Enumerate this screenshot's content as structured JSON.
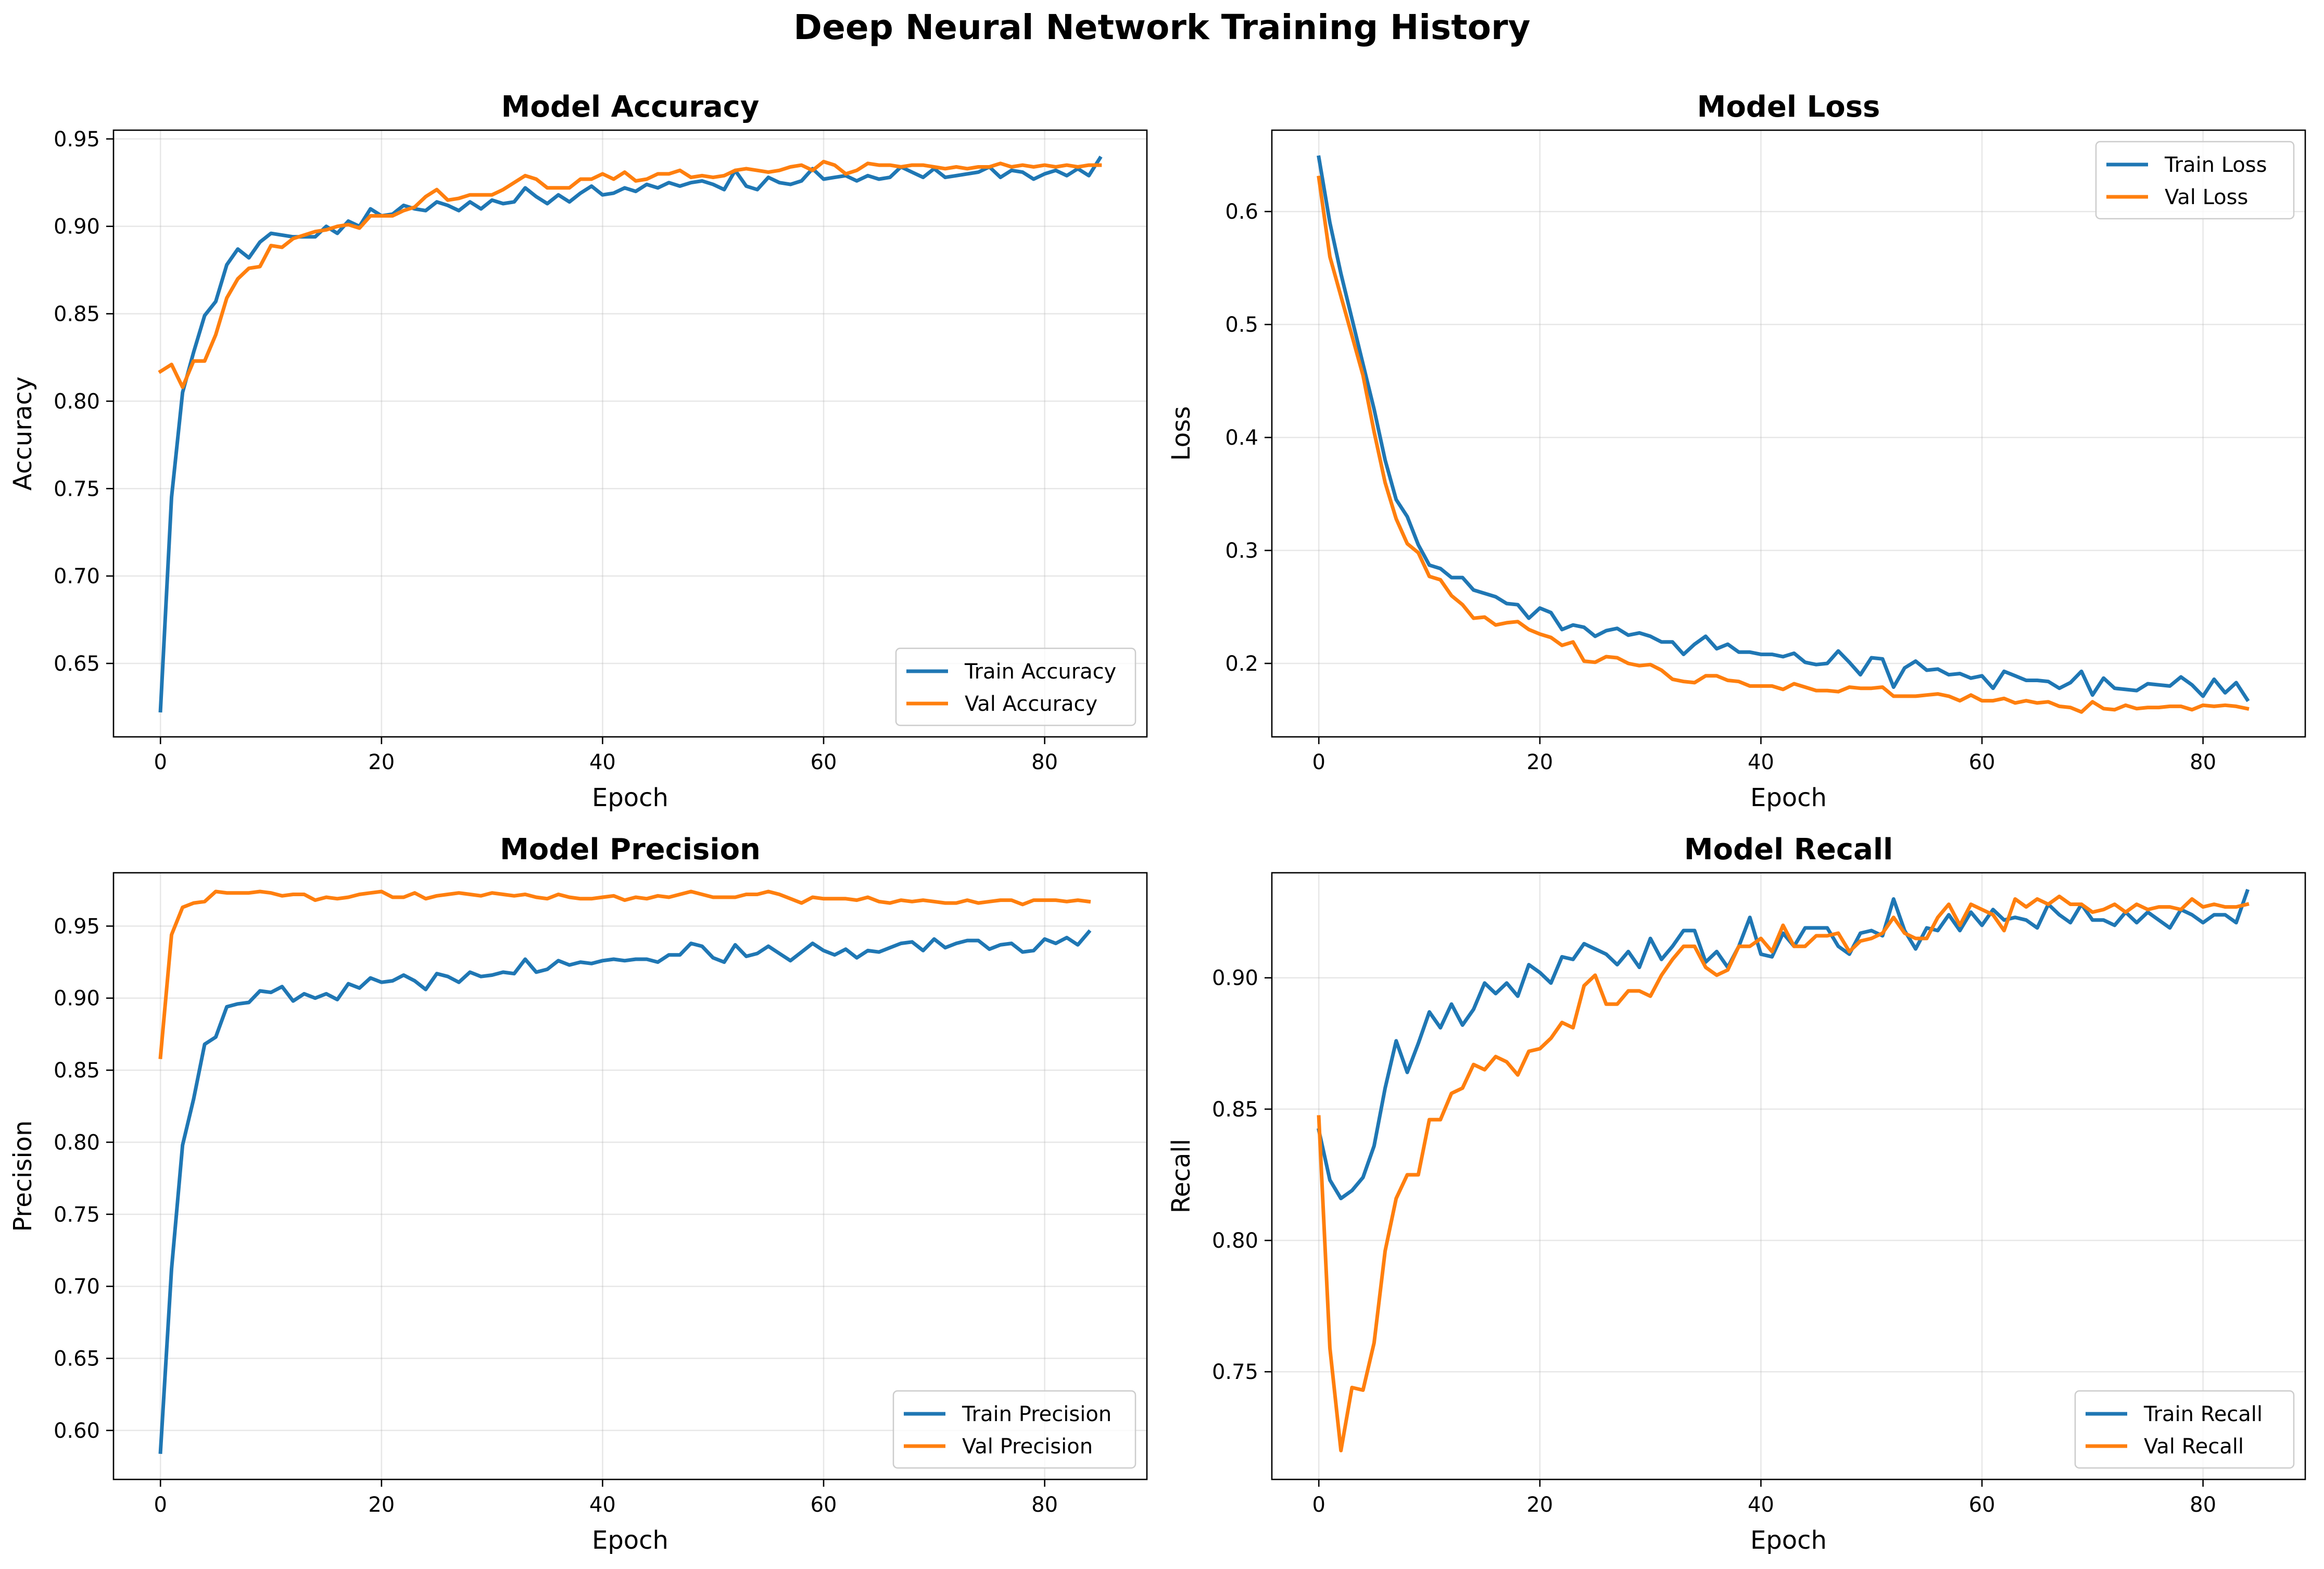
{
  "figure": {
    "title": "Deep Neural Network Training History"
  },
  "colors": {
    "train": "#1f77b4",
    "val": "#ff7f0e"
  },
  "chart_data": [
    {
      "type": "line",
      "title": "Model Accuracy",
      "xlabel": "Epoch",
      "ylabel": "Accuracy",
      "xlim": [
        -4.25,
        89.25
      ],
      "ylim": [
        0.608,
        0.955
      ],
      "xticks": [
        0,
        20,
        40,
        60,
        80
      ],
      "yticks": [
        0.65,
        0.7,
        0.75,
        0.8,
        0.85,
        0.9,
        0.95
      ],
      "grid": true,
      "legend": "lower right",
      "series": [
        {
          "name": "Train Accuracy",
          "color": "#1f77b4",
          "values": [
            0.623,
            0.745,
            0.805,
            0.828,
            0.849,
            0.857,
            0.878,
            0.887,
            0.882,
            0.891,
            0.896,
            0.895,
            0.894,
            0.894,
            0.894,
            0.9,
            0.896,
            0.903,
            0.9,
            0.91,
            0.906,
            0.907,
            0.912,
            0.91,
            0.909,
            0.914,
            0.912,
            0.909,
            0.914,
            0.91,
            0.915,
            0.913,
            0.914,
            0.922,
            0.917,
            0.913,
            0.918,
            0.914,
            0.919,
            0.923,
            0.918,
            0.919,
            0.922,
            0.92,
            0.924,
            0.922,
            0.925,
            0.923,
            0.925,
            0.926,
            0.924,
            0.921,
            0.932,
            0.923,
            0.921,
            0.928,
            0.925,
            0.924,
            0.926,
            0.933,
            0.927,
            0.928,
            0.929,
            0.926,
            0.929,
            0.927,
            0.928,
            0.934,
            0.931,
            0.928,
            0.933,
            0.928,
            0.929,
            0.93,
            0.931,
            0.934,
            0.928,
            0.932,
            0.931,
            0.927,
            0.93,
            0.932,
            0.929,
            0.933,
            0.929,
            0.939
          ]
        },
        {
          "name": "Val Accuracy",
          "color": "#ff7f0e",
          "values": [
            0.817,
            0.821,
            0.808,
            0.823,
            0.823,
            0.838,
            0.859,
            0.87,
            0.876,
            0.877,
            0.889,
            0.888,
            0.893,
            0.895,
            0.897,
            0.898,
            0.9,
            0.901,
            0.899,
            0.906,
            0.906,
            0.906,
            0.909,
            0.911,
            0.917,
            0.921,
            0.915,
            0.916,
            0.918,
            0.918,
            0.918,
            0.921,
            0.925,
            0.929,
            0.927,
            0.922,
            0.922,
            0.922,
            0.927,
            0.927,
            0.93,
            0.927,
            0.931,
            0.926,
            0.927,
            0.93,
            0.93,
            0.932,
            0.928,
            0.929,
            0.928,
            0.929,
            0.932,
            0.933,
            0.932,
            0.931,
            0.932,
            0.934,
            0.935,
            0.932,
            0.937,
            0.935,
            0.93,
            0.932,
            0.936,
            0.935,
            0.935,
            0.934,
            0.935,
            0.935,
            0.934,
            0.933,
            0.934,
            0.933,
            0.934,
            0.934,
            0.936,
            0.934,
            0.935,
            0.934,
            0.935,
            0.934,
            0.935,
            0.934,
            0.935,
            0.935
          ]
        }
      ]
    },
    {
      "type": "line",
      "title": "Model Loss",
      "xlabel": "Epoch",
      "ylabel": "Loss",
      "xlim": [
        -4.25,
        89.25
      ],
      "ylim": [
        0.135,
        0.672
      ],
      "xticks": [
        0,
        20,
        40,
        60,
        80
      ],
      "yticks": [
        0.2,
        0.3,
        0.4,
        0.5,
        0.6
      ],
      "grid": true,
      "legend": "upper right",
      "series": [
        {
          "name": "Train Loss",
          "color": "#1f77b4",
          "values": [
            0.648,
            0.59,
            0.545,
            0.505,
            0.465,
            0.425,
            0.38,
            0.345,
            0.33,
            0.305,
            0.287,
            0.284,
            0.276,
            0.276,
            0.265,
            0.262,
            0.259,
            0.253,
            0.252,
            0.24,
            0.249,
            0.245,
            0.23,
            0.234,
            0.232,
            0.224,
            0.229,
            0.231,
            0.225,
            0.227,
            0.224,
            0.219,
            0.219,
            0.208,
            0.217,
            0.224,
            0.213,
            0.217,
            0.21,
            0.21,
            0.208,
            0.208,
            0.206,
            0.209,
            0.201,
            0.199,
            0.2,
            0.211,
            0.201,
            0.19,
            0.205,
            0.204,
            0.179,
            0.196,
            0.202,
            0.194,
            0.195,
            0.19,
            0.191,
            0.187,
            0.189,
            0.178,
            0.193,
            0.189,
            0.185,
            0.185,
            0.184,
            0.178,
            0.183,
            0.193,
            0.172,
            0.187,
            0.178,
            0.177,
            0.176,
            0.182,
            0.181,
            0.18,
            0.188,
            0.181,
            0.171,
            0.186,
            0.174,
            0.183,
            0.168
          ]
        },
        {
          "name": "Val Loss",
          "color": "#ff7f0e",
          "values": [
            0.63,
            0.56,
            0.525,
            0.49,
            0.455,
            0.405,
            0.36,
            0.328,
            0.306,
            0.298,
            0.277,
            0.274,
            0.26,
            0.252,
            0.24,
            0.241,
            0.234,
            0.236,
            0.237,
            0.23,
            0.226,
            0.223,
            0.216,
            0.219,
            0.202,
            0.201,
            0.206,
            0.205,
            0.2,
            0.198,
            0.199,
            0.194,
            0.186,
            0.184,
            0.183,
            0.189,
            0.189,
            0.185,
            0.184,
            0.18,
            0.18,
            0.18,
            0.177,
            0.182,
            0.179,
            0.176,
            0.176,
            0.175,
            0.179,
            0.178,
            0.178,
            0.179,
            0.171,
            0.171,
            0.171,
            0.172,
            0.173,
            0.171,
            0.167,
            0.172,
            0.167,
            0.167,
            0.169,
            0.165,
            0.167,
            0.165,
            0.166,
            0.162,
            0.161,
            0.157,
            0.166,
            0.16,
            0.159,
            0.163,
            0.16,
            0.161,
            0.161,
            0.162,
            0.162,
            0.159,
            0.163,
            0.162,
            0.163,
            0.162,
            0.16
          ]
        }
      ]
    },
    {
      "type": "line",
      "title": "Model Precision",
      "xlabel": "Epoch",
      "ylabel": "Precision",
      "xlim": [
        -4.25,
        89.25
      ],
      "ylim": [
        0.566,
        0.987
      ],
      "xticks": [
        0,
        20,
        40,
        60,
        80
      ],
      "yticks": [
        0.6,
        0.65,
        0.7,
        0.75,
        0.8,
        0.85,
        0.9,
        0.95
      ],
      "grid": true,
      "legend": "lower right",
      "series": [
        {
          "name": "Train Precision",
          "color": "#1f77b4",
          "values": [
            0.585,
            0.712,
            0.798,
            0.83,
            0.868,
            0.873,
            0.894,
            0.896,
            0.897,
            0.905,
            0.904,
            0.908,
            0.898,
            0.903,
            0.9,
            0.903,
            0.899,
            0.91,
            0.907,
            0.914,
            0.911,
            0.912,
            0.916,
            0.912,
            0.906,
            0.917,
            0.915,
            0.911,
            0.918,
            0.915,
            0.916,
            0.918,
            0.917,
            0.927,
            0.918,
            0.92,
            0.926,
            0.923,
            0.925,
            0.924,
            0.926,
            0.927,
            0.926,
            0.927,
            0.927,
            0.925,
            0.93,
            0.93,
            0.938,
            0.936,
            0.928,
            0.925,
            0.937,
            0.929,
            0.931,
            0.936,
            0.931,
            0.926,
            0.932,
            0.938,
            0.933,
            0.93,
            0.934,
            0.928,
            0.933,
            0.932,
            0.935,
            0.938,
            0.939,
            0.933,
            0.941,
            0.935,
            0.938,
            0.94,
            0.94,
            0.934,
            0.937,
            0.938,
            0.932,
            0.933,
            0.941,
            0.938,
            0.942,
            0.937,
            0.946
          ]
        },
        {
          "name": "Val Precision",
          "color": "#ff7f0e",
          "values": [
            0.859,
            0.944,
            0.963,
            0.966,
            0.967,
            0.974,
            0.973,
            0.973,
            0.973,
            0.974,
            0.973,
            0.971,
            0.972,
            0.972,
            0.968,
            0.97,
            0.969,
            0.97,
            0.972,
            0.973,
            0.974,
            0.97,
            0.97,
            0.973,
            0.969,
            0.971,
            0.972,
            0.973,
            0.972,
            0.971,
            0.973,
            0.972,
            0.971,
            0.972,
            0.97,
            0.969,
            0.972,
            0.97,
            0.969,
            0.969,
            0.97,
            0.971,
            0.968,
            0.97,
            0.969,
            0.971,
            0.97,
            0.972,
            0.974,
            0.972,
            0.97,
            0.97,
            0.97,
            0.972,
            0.972,
            0.974,
            0.972,
            0.969,
            0.966,
            0.97,
            0.969,
            0.969,
            0.969,
            0.968,
            0.97,
            0.967,
            0.966,
            0.968,
            0.967,
            0.968,
            0.967,
            0.966,
            0.966,
            0.968,
            0.966,
            0.967,
            0.968,
            0.968,
            0.965,
            0.968,
            0.968,
            0.968,
            0.967,
            0.968,
            0.967
          ]
        }
      ]
    },
    {
      "type": "line",
      "title": "Model Recall",
      "xlabel": "Epoch",
      "ylabel": "Recall",
      "xlim": [
        -4.25,
        89.25
      ],
      "ylim": [
        0.709,
        0.94
      ],
      "xticks": [
        0,
        20,
        40,
        60,
        80
      ],
      "yticks": [
        0.75,
        0.8,
        0.85,
        0.9
      ],
      "grid": true,
      "legend": "lower right",
      "series": [
        {
          "name": "Train Recall",
          "color": "#1f77b4",
          "values": [
            0.842,
            0.823,
            0.816,
            0.819,
            0.824,
            0.836,
            0.858,
            0.876,
            0.864,
            0.875,
            0.887,
            0.881,
            0.89,
            0.882,
            0.888,
            0.898,
            0.894,
            0.898,
            0.893,
            0.905,
            0.902,
            0.898,
            0.908,
            0.907,
            0.913,
            0.911,
            0.909,
            0.905,
            0.91,
            0.904,
            0.915,
            0.907,
            0.912,
            0.918,
            0.918,
            0.906,
            0.91,
            0.904,
            0.912,
            0.923,
            0.909,
            0.908,
            0.917,
            0.912,
            0.919,
            0.919,
            0.919,
            0.912,
            0.909,
            0.917,
            0.918,
            0.916,
            0.93,
            0.918,
            0.911,
            0.919,
            0.918,
            0.924,
            0.918,
            0.925,
            0.92,
            0.926,
            0.922,
            0.923,
            0.922,
            0.919,
            0.928,
            0.924,
            0.921,
            0.928,
            0.922,
            0.922,
            0.92,
            0.925,
            0.921,
            0.925,
            0.922,
            0.919,
            0.926,
            0.924,
            0.921,
            0.924,
            0.924,
            0.921,
            0.933
          ]
        },
        {
          "name": "Val Recall",
          "color": "#ff7f0e",
          "values": [
            0.847,
            0.759,
            0.72,
            0.744,
            0.743,
            0.761,
            0.796,
            0.816,
            0.825,
            0.825,
            0.846,
            0.846,
            0.856,
            0.858,
            0.867,
            0.865,
            0.87,
            0.868,
            0.863,
            0.872,
            0.873,
            0.877,
            0.883,
            0.881,
            0.897,
            0.901,
            0.89,
            0.89,
            0.895,
            0.895,
            0.893,
            0.901,
            0.907,
            0.912,
            0.912,
            0.904,
            0.901,
            0.903,
            0.912,
            0.912,
            0.915,
            0.91,
            0.92,
            0.912,
            0.912,
            0.916,
            0.916,
            0.917,
            0.91,
            0.914,
            0.915,
            0.917,
            0.923,
            0.917,
            0.915,
            0.915,
            0.923,
            0.928,
            0.92,
            0.928,
            0.926,
            0.924,
            0.918,
            0.93,
            0.927,
            0.93,
            0.928,
            0.931,
            0.928,
            0.928,
            0.925,
            0.926,
            0.928,
            0.925,
            0.928,
            0.926,
            0.927,
            0.927,
            0.926,
            0.93,
            0.927,
            0.928,
            0.927,
            0.927,
            0.928
          ]
        }
      ]
    }
  ]
}
